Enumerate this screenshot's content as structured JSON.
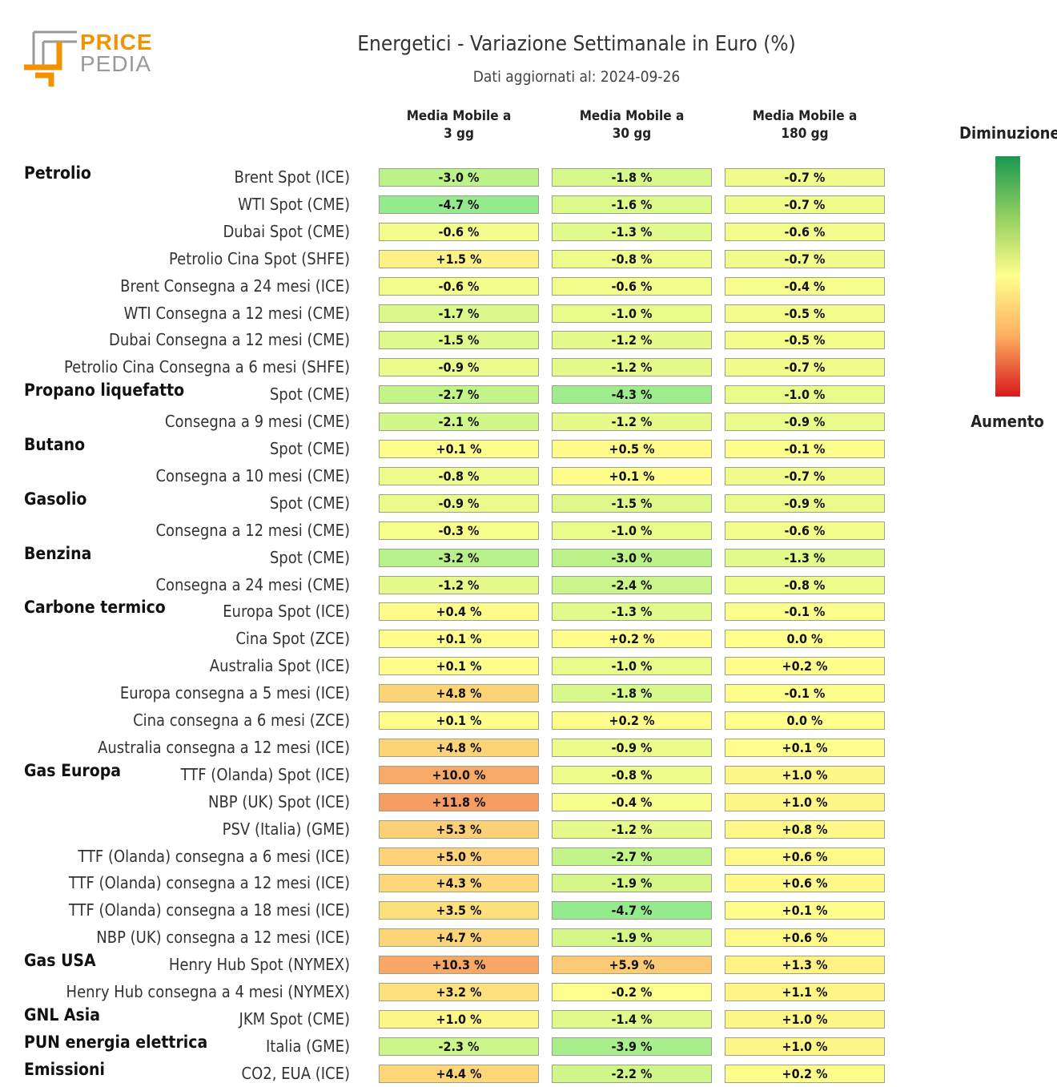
{
  "logo": {
    "word1": "PRICE",
    "word2": "PEDIA"
  },
  "chart_data": {
    "type": "table",
    "title": "Energetici - Variazione Settimanale in Euro (%)",
    "subtitle": "Dati aggiornati al: 2024-09-26",
    "columns": [
      "Media Mobile a\n3 gg",
      "Media Mobile a\n30 gg",
      "Media Mobile a\n180 gg"
    ],
    "legend": {
      "top": "Diminuzione",
      "bottom": "Aumento",
      "colors": [
        "#1a9850",
        "#91cf60",
        "#ffff8c",
        "#fdae61",
        "#d7191c"
      ]
    },
    "groups": [
      {
        "name": "Petrolio",
        "rows": [
          {
            "label": "Brent Spot (ICE)",
            "values": [
              -3.0,
              -1.8,
              -0.7
            ]
          },
          {
            "label": "WTI Spot (CME)",
            "values": [
              -4.7,
              -1.6,
              -0.7
            ]
          },
          {
            "label": "Dubai Spot (CME)",
            "values": [
              -0.6,
              -1.3,
              -0.6
            ]
          },
          {
            "label": "Petrolio Cina Spot (SHFE)",
            "values": [
              1.5,
              -0.8,
              -0.7
            ]
          },
          {
            "label": "Brent Consegna a 24 mesi (ICE)",
            "values": [
              -0.6,
              -0.6,
              -0.4
            ]
          },
          {
            "label": "WTI Consegna a 12 mesi (CME)",
            "values": [
              -1.7,
              -1.0,
              -0.5
            ]
          },
          {
            "label": "Dubai Consegna a 12 mesi (CME)",
            "values": [
              -1.5,
              -1.2,
              -0.5
            ]
          },
          {
            "label": "Petrolio Cina Consegna a 6 mesi (SHFE)",
            "values": [
              -0.9,
              -1.2,
              -0.7
            ]
          }
        ]
      },
      {
        "name": "Propano liquefatto",
        "rows": [
          {
            "label": "Spot (CME)",
            "values": [
              -2.7,
              -4.3,
              -1.0
            ]
          },
          {
            "label": "Consegna a 9 mesi (CME)",
            "values": [
              -2.1,
              -1.2,
              -0.9
            ]
          }
        ]
      },
      {
        "name": "Butano",
        "rows": [
          {
            "label": "Spot (CME)",
            "values": [
              0.1,
              0.5,
              -0.1
            ]
          },
          {
            "label": "Consegna a 10 mesi (CME)",
            "values": [
              -0.8,
              0.1,
              -0.7
            ]
          }
        ]
      },
      {
        "name": "Gasolio",
        "rows": [
          {
            "label": "Spot (CME)",
            "values": [
              -0.9,
              -1.5,
              -0.9
            ]
          },
          {
            "label": "Consegna a 12 mesi (CME)",
            "values": [
              -0.3,
              -1.0,
              -0.6
            ]
          }
        ]
      },
      {
        "name": "Benzina",
        "rows": [
          {
            "label": "Spot (CME)",
            "values": [
              -3.2,
              -3.0,
              -1.3
            ]
          },
          {
            "label": "Consegna a 24 mesi (CME)",
            "values": [
              -1.2,
              -2.4,
              -0.8
            ]
          }
        ]
      },
      {
        "name": "Carbone termico",
        "rows": [
          {
            "label": "Europa Spot (ICE)",
            "values": [
              0.4,
              -1.3,
              -0.1
            ]
          },
          {
            "label": "Cina Spot (ZCE)",
            "values": [
              0.1,
              0.2,
              0.0
            ]
          },
          {
            "label": "Australia Spot (ICE)",
            "values": [
              0.1,
              -1.0,
              0.2
            ]
          },
          {
            "label": "Europa consegna a 5 mesi (ICE)",
            "values": [
              4.8,
              -1.8,
              -0.1
            ]
          },
          {
            "label": "Cina consegna a 6 mesi (ZCE)",
            "values": [
              0.1,
              0.2,
              0.0
            ]
          },
          {
            "label": "Australia consegna a 12 mesi (ICE)",
            "values": [
              4.8,
              -0.9,
              0.1
            ]
          }
        ]
      },
      {
        "name": "Gas Europa",
        "rows": [
          {
            "label": "TTF (Olanda) Spot (ICE)",
            "values": [
              10.0,
              -0.8,
              1.0
            ]
          },
          {
            "label": "NBP (UK) Spot (ICE)",
            "values": [
              11.8,
              -0.4,
              1.0
            ]
          },
          {
            "label": "PSV (Italia) (GME)",
            "values": [
              5.3,
              -1.2,
              0.8
            ]
          },
          {
            "label": "TTF (Olanda) consegna a 6 mesi (ICE)",
            "values": [
              5.0,
              -2.7,
              0.6
            ]
          },
          {
            "label": "TTF (Olanda) consegna a 12 mesi (ICE)",
            "values": [
              4.3,
              -1.9,
              0.6
            ]
          },
          {
            "label": "TTF (Olanda) consegna a 18 mesi (ICE)",
            "values": [
              3.5,
              -4.7,
              0.1
            ]
          },
          {
            "label": "NBP (UK) consegna a 12 mesi (ICE)",
            "values": [
              4.7,
              -1.9,
              0.6
            ]
          }
        ]
      },
      {
        "name": "Gas USA",
        "rows": [
          {
            "label": "Henry Hub Spot (NYMEX)",
            "values": [
              10.3,
              5.9,
              1.3
            ]
          },
          {
            "label": "Henry Hub consegna a 4 mesi (NYMEX)",
            "values": [
              3.2,
              -0.2,
              1.1
            ]
          }
        ]
      },
      {
        "name": "GNL Asia",
        "rows": [
          {
            "label": "JKM Spot (CME)",
            "values": [
              1.0,
              -1.4,
              1.0
            ]
          }
        ]
      },
      {
        "name": "PUN energia elettrica",
        "rows": [
          {
            "label": "Italia (GME)",
            "values": [
              -2.3,
              -3.9,
              1.0
            ]
          }
        ]
      },
      {
        "name": "Emissioni",
        "rows": [
          {
            "label": "CO2, EUA (ICE)",
            "values": [
              4.4,
              -2.2,
              0.2
            ]
          }
        ]
      }
    ]
  }
}
